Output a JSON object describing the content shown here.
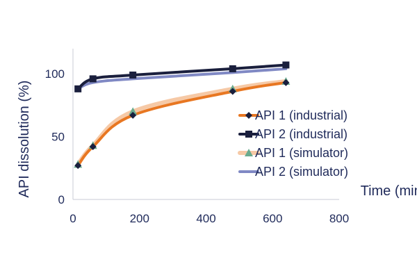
{
  "chart_data": {
    "type": "line",
    "xlabel": "Time (min)",
    "ylabel": "API dissolution (%)",
    "xlim": [
      0,
      800
    ],
    "ylim": [
      0,
      120
    ],
    "x_ticks": [
      "0",
      "200",
      "400",
      "600",
      "800"
    ],
    "y_ticks": [
      "0",
      "50",
      "100"
    ],
    "grid": false,
    "legend_position": "right",
    "series": [
      {
        "name": "API 1 (industrial)",
        "color": "#e87722",
        "marker": "diamond",
        "marker_color": "#1a1f3d",
        "x": [
          15,
          60,
          180,
          480,
          640
        ],
        "y": [
          27,
          42,
          67,
          86,
          93
        ]
      },
      {
        "name": "API 2 (industrial)",
        "color": "#1a1f3d",
        "marker": "square",
        "marker_color": "#1a1f3d",
        "x": [
          15,
          60,
          180,
          480,
          640
        ],
        "y": [
          88,
          96,
          99,
          104,
          107
        ]
      },
      {
        "name": "API 1 (simulator)",
        "color": "#f6c9a6",
        "marker": "triangle",
        "marker_color": "#6aab8e",
        "x": [
          15,
          60,
          180,
          480,
          640
        ],
        "y": [
          28,
          43,
          70,
          88,
          94
        ]
      },
      {
        "name": "API 2 (simulator)",
        "color": "#8089c4",
        "marker": "none",
        "marker_color": "#8089c4",
        "x": [
          15,
          60,
          180,
          480,
          640
        ],
        "y": [
          88,
          93,
          96,
          101,
          104
        ]
      }
    ]
  }
}
